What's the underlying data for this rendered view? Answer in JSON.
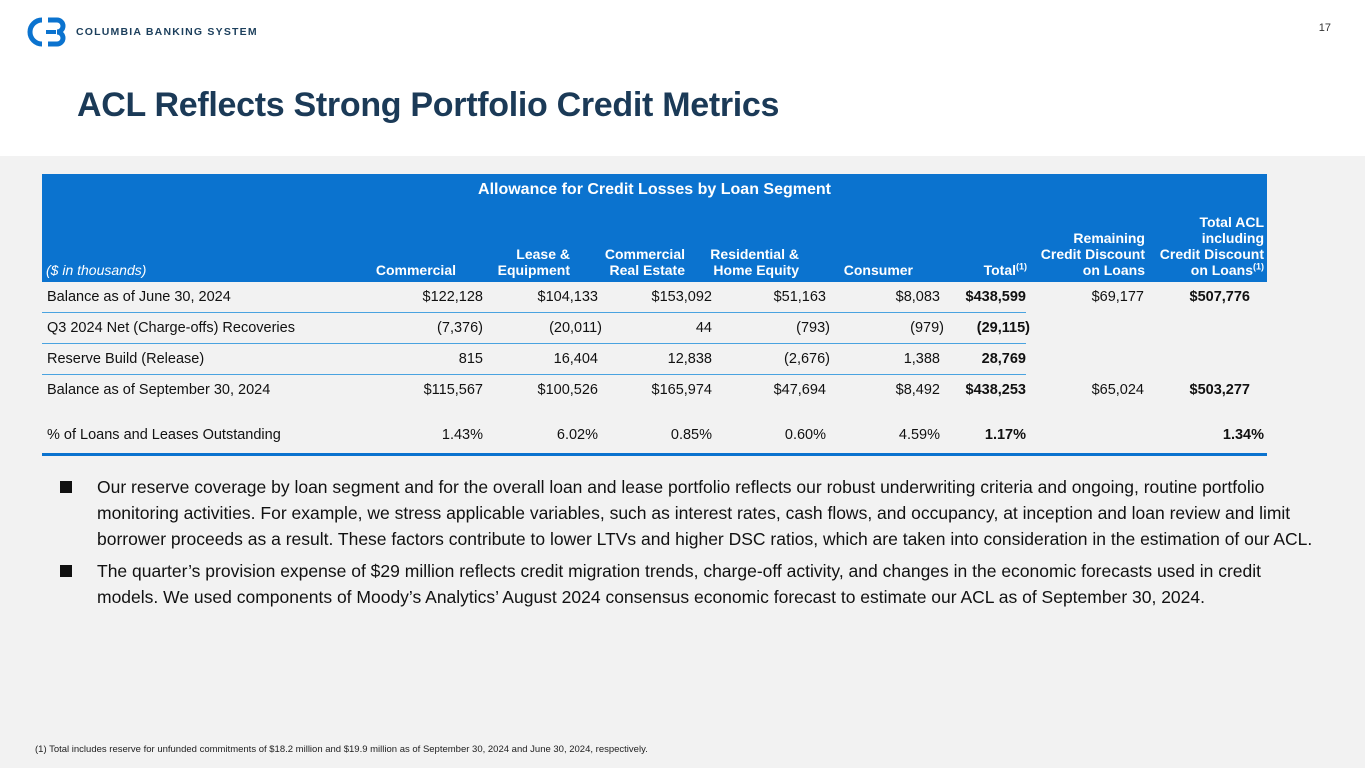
{
  "header": {
    "logo_text": "COLUMBIA BANKING SYSTEM",
    "page_number": "17",
    "title": "ACL Reflects Strong Portfolio Credit Metrics"
  },
  "table": {
    "title": "Allowance for Credit Losses by Loan Segment",
    "units_label": "($ in thousands)",
    "columns": {
      "commercial": "Commercial",
      "lease_1": "Lease &",
      "lease_2": "Equipment",
      "cre_1": "Commercial",
      "cre_2": "Real Estate",
      "res_1": "Residential &",
      "res_2": "Home Equity",
      "consumer": "Consumer",
      "total": "Total",
      "total_note": "(1)",
      "rem_1": "Remaining",
      "rem_2": "Credit Discount",
      "rem_3": "on Loans",
      "acl_1": "Total ACL",
      "acl_2": "including",
      "acl_3": "Credit Discount",
      "acl_4": "on Loans",
      "acl_note": "(1)"
    },
    "rows": [
      {
        "label": "Balance as of June 30, 2024",
        "commercial": "$122,128",
        "lease": "$104,133",
        "cre": "$153,092",
        "res": "$51,163",
        "consumer": "$8,083",
        "total": "$438,599",
        "remaining": "$69,177",
        "total_acl": "$507,776"
      },
      {
        "label": "Q3 2024 Net (Charge-offs) Recoveries",
        "commercial": "(7,376)",
        "lease": "(20,011)",
        "cre": "44",
        "res": "(793)",
        "consumer": "(979)",
        "total": "(29,115)",
        "remaining": "",
        "total_acl": ""
      },
      {
        "label": "Reserve Build (Release)",
        "commercial": "815",
        "lease": "16,404",
        "cre": "12,838",
        "res": "(2,676)",
        "consumer": "1,388",
        "total": "28,769",
        "remaining": "",
        "total_acl": ""
      },
      {
        "label": "Balance as of September 30, 2024",
        "commercial": "$115,567",
        "lease": "$100,526",
        "cre": "$165,974",
        "res": "$47,694",
        "consumer": "$8,492",
        "total": "$438,253",
        "remaining": "$65,024",
        "total_acl": "$503,277"
      },
      {
        "label": "% of Loans and Leases Outstanding",
        "commercial": "1.43%",
        "lease": "6.02%",
        "cre": "0.85%",
        "res": "0.60%",
        "consumer": "4.59%",
        "total": "1.17%",
        "remaining": "",
        "total_acl": "1.34%"
      }
    ]
  },
  "bullets": [
    "Our reserve coverage by loan segment and for the overall loan and lease portfolio reflects our robust underwriting criteria and ongoing, routine portfolio monitoring activities. For example, we stress applicable variables, such as interest rates, cash flows, and occupancy, at inception and loan review and limit borrower proceeds as a result. These factors contribute to lower LTVs and higher DSC ratios, which are taken into consideration in the estimation of our ACL.",
    "The quarter’s provision expense of $29 million reflects credit migration trends, charge-off activity, and changes in the economic forecasts used in credit models. We used components of Moody’s Analytics’ August 2024 consensus economic forecast to estimate our ACL as of September 30, 2024."
  ],
  "footnote": "(1)  Total includes reserve for unfunded commitments of $18.2 million and $19.9 million as of September 30, 2024 and June 30, 2024, respectively.",
  "colors": {
    "brand_blue": "#0b73cf",
    "title_navy": "#1b3a57"
  }
}
